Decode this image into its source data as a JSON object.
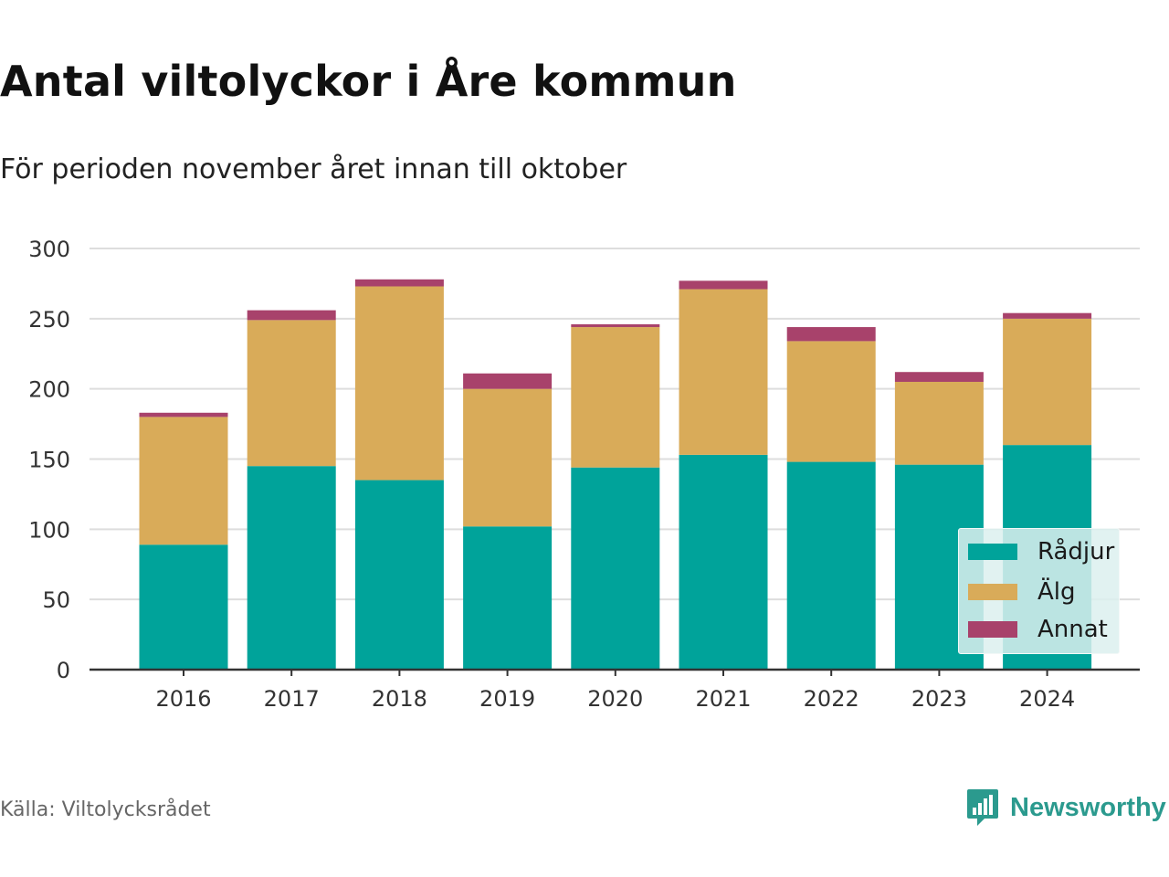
{
  "title": "Antal viltolyckor i Åre kommun",
  "subtitle": "För perioden november året innan till oktober",
  "source": "Källa: Viltolycksrådet",
  "brand": "Newsworthy",
  "colors": {
    "radjur": "#00a39a",
    "alg": "#d9ab59",
    "annat": "#a8426b",
    "grid": "#dddddd",
    "axis": "#333333",
    "brand": "#2b9a8e"
  },
  "chart_data": {
    "type": "bar",
    "stacked": true,
    "categories": [
      "2016",
      "2017",
      "2018",
      "2019",
      "2020",
      "2021",
      "2022",
      "2023",
      "2024"
    ],
    "series": [
      {
        "name": "Rådjur",
        "color": "#00a39a",
        "values": [
          89,
          145,
          135,
          102,
          144,
          153,
          148,
          146,
          160
        ]
      },
      {
        "name": "Älg",
        "color": "#d9ab59",
        "values": [
          91,
          104,
          138,
          98,
          100,
          118,
          86,
          59,
          90
        ]
      },
      {
        "name": "Annat",
        "color": "#a8426b",
        "values": [
          3,
          7,
          5,
          11,
          2,
          6,
          10,
          7,
          4
        ]
      }
    ],
    "ylim": [
      0,
      300
    ],
    "yticks": [
      0,
      50,
      100,
      150,
      200,
      250,
      300
    ],
    "grid": true,
    "legend_position": "bottom-right"
  }
}
